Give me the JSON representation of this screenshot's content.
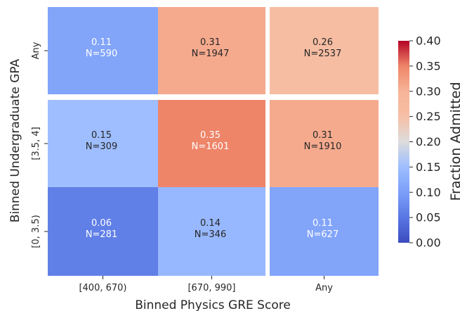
{
  "chart_data": {
    "type": "heatmap",
    "xlabel": "Binned Physics GRE Score",
    "ylabel": "Binned Undergraduate GPA",
    "colorbar_label": "Fraction Admitted",
    "x_categories": [
      "[400, 670)",
      "[670, 990]",
      "Any"
    ],
    "y_categories": [
      "Any",
      "[3.5, 4]",
      "[0, 3.5)"
    ],
    "cells": [
      [
        {
          "value": 0.11,
          "value_label": "0.11",
          "n_label": "N=590"
        },
        {
          "value": 0.31,
          "value_label": "0.31",
          "n_label": "N=1947"
        },
        {
          "value": 0.26,
          "value_label": "0.26",
          "n_label": "N=2537"
        }
      ],
      [
        {
          "value": 0.15,
          "value_label": "0.15",
          "n_label": "N=309"
        },
        {
          "value": 0.35,
          "value_label": "0.35",
          "n_label": "N=1601"
        },
        {
          "value": 0.31,
          "value_label": "0.31",
          "n_label": "N=1910"
        }
      ],
      [
        {
          "value": 0.06,
          "value_label": "0.06",
          "n_label": "N=281"
        },
        {
          "value": 0.14,
          "value_label": "0.14",
          "n_label": "N=346"
        },
        {
          "value": 0.11,
          "value_label": "0.11",
          "n_label": "N=627"
        }
      ]
    ],
    "colorbar_range": [
      0.0,
      0.4
    ],
    "colorbar_ticks": [
      "0.00",
      "0.05",
      "0.10",
      "0.15",
      "0.20",
      "0.25",
      "0.30",
      "0.35",
      "0.40"
    ],
    "colormap": "coolwarm",
    "separators": "white gaps between the 'Any' row and the other rows, and between the 'Any' column and the other columns",
    "grid": false
  }
}
